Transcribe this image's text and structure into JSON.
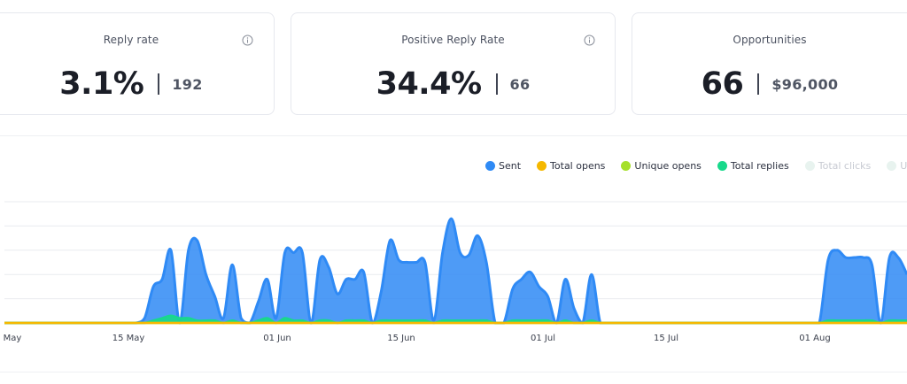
{
  "cards": [
    {
      "title": "Reply rate",
      "value": "3.1%",
      "sub": "192",
      "has_info": true
    },
    {
      "title": "Positive Reply Rate",
      "value": "34.4%",
      "sub": "66",
      "has_info": true
    },
    {
      "title": "Opportunities",
      "value": "66",
      "sub": "$96,000",
      "has_info": false
    }
  ],
  "colors": {
    "sent": "#2f8af5",
    "total_opens": "#f5b800",
    "unique_opens": "#a5e02a",
    "total_replies": "#18d98b",
    "total_clicks": "#e8f3ef",
    "unique_clicks": "#e8f3ef"
  },
  "legend": [
    {
      "label": "Sent",
      "color": "#2f8af5",
      "active": true
    },
    {
      "label": "Total opens",
      "color": "#f5b800",
      "active": true
    },
    {
      "label": "Unique opens",
      "color": "#a5e02a",
      "active": true
    },
    {
      "label": "Total replies",
      "color": "#18d98b",
      "active": true
    },
    {
      "label": "Total clicks",
      "color": "#e8f3ef",
      "active": false
    },
    {
      "label": "Unique c",
      "color": "#e8f3ef",
      "active": false
    }
  ],
  "chart_data": {
    "type": "area",
    "x_tick_labels": [
      "May",
      "15 May",
      "01 Jun",
      "15 Jun",
      "01 Jul",
      "15 Jul",
      "01 Aug"
    ],
    "ylim": [
      0,
      5
    ],
    "grid": true,
    "legend_placement": "top-right",
    "series": [
      {
        "name": "Sent",
        "values": [
          0,
          0,
          0,
          0,
          0,
          0,
          0,
          0,
          0,
          0,
          0,
          0,
          0,
          0,
          0,
          0,
          0.2,
          1.5,
          1.8,
          3.0,
          0,
          3.0,
          3.4,
          2.0,
          1.1,
          0.2,
          2.4,
          0.2,
          0,
          0.9,
          1.8,
          0.2,
          2.9,
          2.9,
          2.9,
          0,
          2.6,
          2.3,
          1.2,
          1.8,
          1.8,
          2.1,
          0,
          1.3,
          3.4,
          2.6,
          2.5,
          2.5,
          2.5,
          0.1,
          2.9,
          4.3,
          2.9,
          2.8,
          3.6,
          2.5,
          0,
          0,
          1.4,
          1.8,
          2.1,
          1.5,
          1.1,
          0,
          1.8,
          0.6,
          0,
          2.0,
          0,
          0,
          0,
          0,
          0,
          0,
          0,
          0,
          0,
          0,
          0,
          0,
          0,
          0,
          0,
          0,
          0,
          0,
          0,
          0,
          0,
          0,
          0,
          0,
          0,
          0,
          2.6,
          3.0,
          2.7,
          2.7,
          2.7,
          2.4,
          0,
          2.7,
          2.7,
          2.0
        ]
      },
      {
        "name": "Total opens",
        "values": [
          0,
          0,
          0,
          0,
          0,
          0,
          0,
          0,
          0,
          0,
          0,
          0,
          0,
          0,
          0,
          0,
          0,
          0,
          0,
          0,
          0,
          0,
          0,
          0,
          0,
          0,
          0,
          0,
          0,
          0,
          0,
          0,
          0,
          0,
          0,
          0,
          0,
          0,
          0,
          0,
          0,
          0,
          0,
          0,
          0,
          0,
          0,
          0,
          0,
          0,
          0,
          0,
          0,
          0,
          0,
          0,
          0,
          0,
          0,
          0,
          0,
          0,
          0,
          0,
          0,
          0,
          0,
          0,
          0,
          0,
          0,
          0,
          0,
          0,
          0,
          0,
          0,
          0,
          0,
          0,
          0,
          0,
          0,
          0,
          0,
          0,
          0,
          0,
          0,
          0,
          0,
          0,
          0,
          0,
          0,
          0,
          0,
          0,
          0,
          0,
          0,
          0,
          0
        ]
      },
      {
        "name": "Unique opens",
        "values": [
          0,
          0,
          0,
          0,
          0,
          0,
          0,
          0,
          0,
          0,
          0,
          0,
          0,
          0,
          0,
          0,
          0,
          0,
          0,
          0,
          0,
          0,
          0,
          0,
          0,
          0,
          0,
          0,
          0,
          0,
          0,
          0,
          0,
          0,
          0,
          0,
          0,
          0,
          0,
          0,
          0,
          0,
          0,
          0,
          0,
          0,
          0,
          0,
          0,
          0,
          0,
          0,
          0,
          0,
          0,
          0,
          0,
          0,
          0,
          0,
          0,
          0,
          0,
          0,
          0,
          0,
          0,
          0,
          0,
          0,
          0,
          0,
          0,
          0,
          0,
          0,
          0,
          0,
          0,
          0,
          0,
          0,
          0,
          0,
          0,
          0,
          0,
          0,
          0,
          0,
          0,
          0,
          0,
          0,
          0,
          0,
          0,
          0,
          0,
          0,
          0,
          0,
          0
        ]
      },
      {
        "name": "Total replies",
        "values": [
          0,
          0,
          0,
          0,
          0,
          0,
          0,
          0,
          0,
          0,
          0,
          0,
          0,
          0,
          0,
          0,
          0,
          0.1,
          0.2,
          0.3,
          0.2,
          0.2,
          0.1,
          0.1,
          0.1,
          0,
          0.1,
          0,
          0,
          0.1,
          0.2,
          0,
          0.2,
          0.1,
          0.1,
          0,
          0.1,
          0.1,
          0,
          0.1,
          0.1,
          0.1,
          0,
          0.1,
          0.1,
          0.1,
          0.1,
          0.1,
          0.1,
          0,
          0.1,
          0.1,
          0.1,
          0.1,
          0.1,
          0.1,
          0,
          0,
          0.1,
          0.1,
          0.1,
          0.1,
          0.1,
          0,
          0.1,
          0,
          0,
          0.1,
          0,
          0,
          0,
          0,
          0,
          0,
          0,
          0,
          0,
          0,
          0,
          0,
          0,
          0,
          0,
          0,
          0,
          0,
          0,
          0,
          0,
          0,
          0,
          0,
          0,
          0,
          0.1,
          0.1,
          0.1,
          0.1,
          0.1,
          0.1,
          0,
          0.1,
          0.1,
          0.1
        ]
      }
    ]
  }
}
